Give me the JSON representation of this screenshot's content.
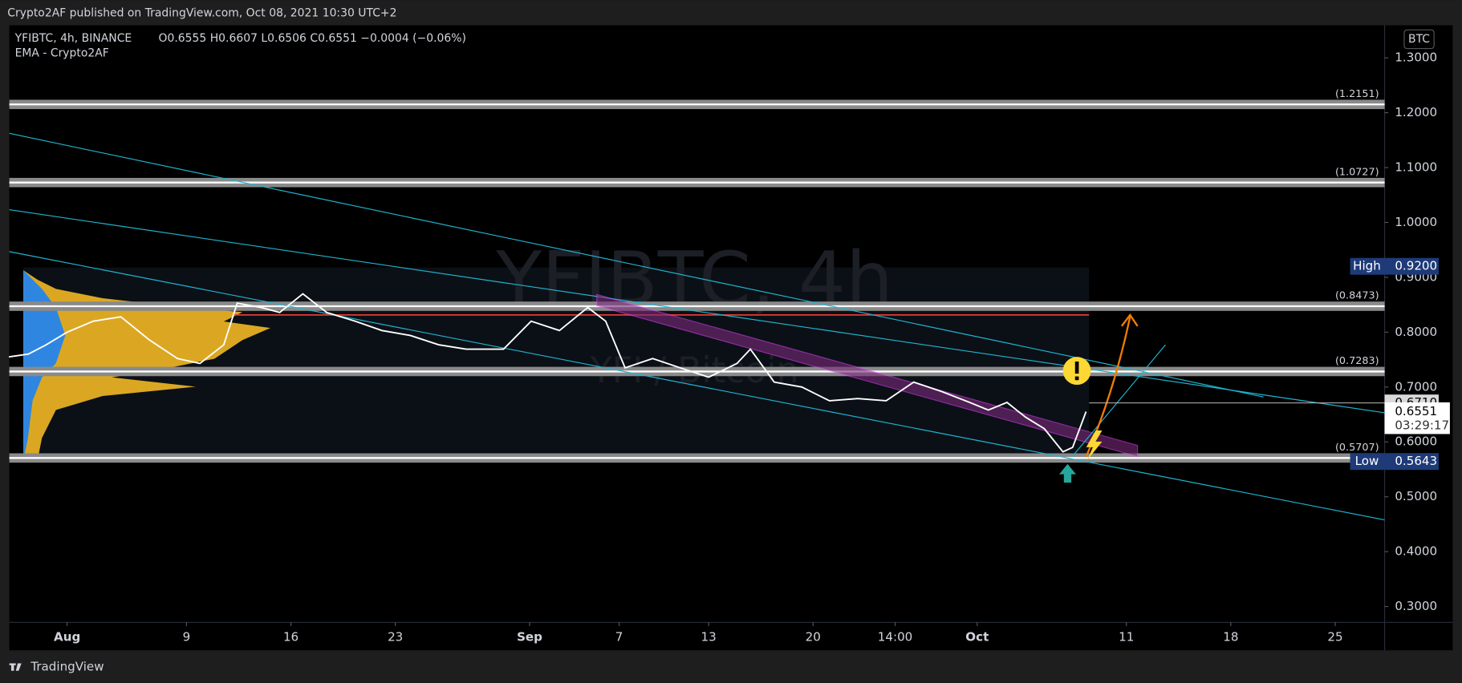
{
  "header": {
    "published": "Crypto2AF published on TradingView.com, Oct 08, 2021 10:30 UTC+2",
    "brand": "TradingView"
  },
  "chart_data": {
    "type": "line",
    "symbol": "YFIBTC, 4h, BINANCE",
    "ohlc": "O0.6555 H0.6607 L0.6506 C0.6551 −0.0004 (−0.06%)",
    "indicator": "EMA - Crypto2AF",
    "watermark": "YFIBTC, 4h",
    "watermark_sub": "YFI / Bitcoin",
    "currency": "BTC",
    "x": [
      -3.9,
      -2.6,
      -1.4,
      0,
      1.75,
      3.6,
      5.5,
      7.4,
      8.9,
      10.5,
      11.4,
      13,
      14.25,
      15.8,
      17.4,
      19.3,
      21.1,
      23,
      24.9,
      26.75,
      29.25,
      31.1,
      33,
      34.9,
      36.1,
      37.4,
      39.25,
      41.1,
      43,
      44.9,
      45.8,
      47.4,
      49.25,
      51.1,
      53,
      54.9,
      56.75,
      58.6,
      60.5,
      61.75,
      63,
      64.25,
      65.5,
      66.75,
      67.4,
      68.3
    ],
    "values": [
      0.755,
      0.76,
      0.777,
      0.8,
      0.82,
      0.828,
      0.786,
      0.752,
      0.743,
      0.777,
      0.853,
      0.845,
      0.836,
      0.87,
      0.836,
      0.82,
      0.803,
      0.794,
      0.777,
      0.769,
      0.769,
      0.82,
      0.803,
      0.845,
      0.82,
      0.735,
      0.752,
      0.735,
      0.718,
      0.743,
      0.769,
      0.709,
      0.7,
      0.675,
      0.679,
      0.675,
      0.709,
      0.692,
      0.672,
      0.658,
      0.672,
      0.645,
      0.624,
      0.582,
      0.59,
      0.6551
    ],
    "color": "#ffffff",
    "xlim": [
      -3.875,
      88.31
    ],
    "xticks": [
      {
        "value": 0,
        "label": "Aug"
      },
      {
        "value": 8,
        "label": "9"
      },
      {
        "value": 15,
        "label": "16"
      },
      {
        "value": 22,
        "label": "23"
      },
      {
        "value": 31,
        "label": "Sep"
      },
      {
        "value": 37,
        "label": "7"
      },
      {
        "value": 43,
        "label": "13"
      },
      {
        "value": 50,
        "label": "20"
      },
      {
        "value": 55.5,
        "label": "14:00"
      },
      {
        "value": 61,
        "label": "Oct"
      },
      {
        "value": 71,
        "label": "11"
      },
      {
        "value": 78,
        "label": "18"
      },
      {
        "value": 85,
        "label": "25"
      }
    ],
    "ylim": [
      0.2711,
      1.3594
    ],
    "yticks": [
      {
        "value": 0.3,
        "label": "0.3000"
      },
      {
        "value": 0.4,
        "label": "0.4000"
      },
      {
        "value": 0.5,
        "label": "0.5000"
      },
      {
        "value": 0.6,
        "label": "0.6000"
      },
      {
        "value": 0.7,
        "label": "0.7000"
      },
      {
        "value": 0.8,
        "label": "0.8000"
      },
      {
        "value": 0.9,
        "label": "0.9000"
      },
      {
        "value": 1.0,
        "label": "1.0000"
      },
      {
        "value": 1.1,
        "label": "1.1000"
      },
      {
        "value": 1.2,
        "label": "1.2000"
      },
      {
        "value": 1.3,
        "label": "1.3000"
      }
    ],
    "levels": [
      {
        "value": 1.2151,
        "label": "(1.2151)"
      },
      {
        "value": 1.0727,
        "label": "(1.0727)"
      },
      {
        "value": 0.8473,
        "label": "(0.8473)"
      },
      {
        "value": 0.7283,
        "label": "(0.7283)"
      },
      {
        "value": 0.5707,
        "label": "(0.5707)"
      }
    ],
    "high": {
      "label": "High",
      "value": 0.92,
      "value_label": "0.9200"
    },
    "low": {
      "label": "Low",
      "value": 0.5643
    },
    "ema_price": {
      "value": 0.671,
      "value_label": "0.6710"
    },
    "last_price": {
      "value": 0.6551,
      "countdown": "03:29:17"
    }
  }
}
